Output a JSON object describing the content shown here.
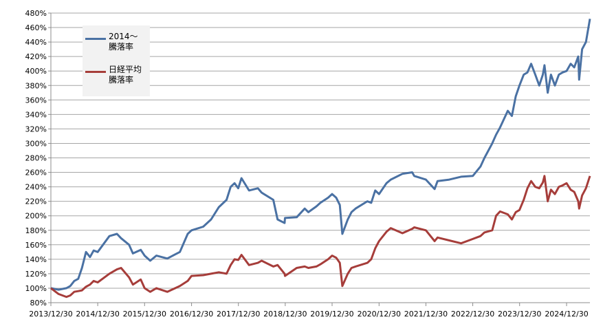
{
  "chart_data": {
    "type": "line",
    "title": "",
    "xlabel": "",
    "ylabel": "",
    "ylim": [
      80,
      480
    ],
    "y_ticks": [
      "80%",
      "100%",
      "120%",
      "140%",
      "160%",
      "180%",
      "200%",
      "220%",
      "240%",
      "260%",
      "280%",
      "300%",
      "320%",
      "340%",
      "360%",
      "380%",
      "400%",
      "420%",
      "440%",
      "460%",
      "480%"
    ],
    "x_ticks": [
      "2013/12/30",
      "2014/12/30",
      "2015/12/30",
      "2016/12/30",
      "2017/12/30",
      "2018/12/30",
      "2019/12/30",
      "2020/12/30",
      "2021/12/30",
      "2022/12/30",
      "2023/12/30",
      "2024/12/30"
    ],
    "x_start": "2013/12/30",
    "x_end": "2025/06/30",
    "grid": true,
    "legend_position": "top-left",
    "series": [
      {
        "name": "2014～\n騰落率",
        "color": "#4a71a3",
        "x": [
          "2013/12/30",
          "2014/02/28",
          "2014/04/30",
          "2014/05/30",
          "2014/06/30",
          "2014/07/31",
          "2014/08/29",
          "2014/09/30",
          "2014/10/31",
          "2014/11/28",
          "2014/12/30",
          "2015/03/31",
          "2015/05/29",
          "2015/06/30",
          "2015/08/31",
          "2015/09/30",
          "2015/11/30",
          "2015/12/30",
          "2016/02/12",
          "2016/03/31",
          "2016/06/24",
          "2016/09/30",
          "2016/11/30",
          "2016/12/30",
          "2017/03/31",
          "2017/05/31",
          "2017/07/31",
          "2017/09/29",
          "2017/10/31",
          "2017/11/30",
          "2017/12/29",
          "2018/01/23",
          "2018/03/23",
          "2018/05/31",
          "2018/06/29",
          "2018/09/28",
          "2018/10/31",
          "2018/12/25",
          "2018/12/28",
          "2019/03/29",
          "2019/05/31",
          "2019/06/28",
          "2019/08/30",
          "2019/09/30",
          "2019/11/29",
          "2019/12/30",
          "2020/01/31",
          "2020/02/28",
          "2020/03/19",
          "2020/04/30",
          "2020/05/29",
          "2020/06/30",
          "2020/09/30",
          "2020/10/30",
          "2020/11/30",
          "2020/12/30",
          "2021/02/26",
          "2021/03/31",
          "2021/06/30",
          "2021/09/14",
          "2021/09/30",
          "2021/12/30",
          "2022/03/08",
          "2022/03/31",
          "2022/06/30",
          "2022/09/30",
          "2022/12/30",
          "2023/02/28",
          "2023/03/31",
          "2023/05/31",
          "2023/06/30",
          "2023/07/31",
          "2023/09/29",
          "2023/10/31",
          "2023/11/30",
          "2023/12/29",
          "2024/01/31",
          "2024/02/29",
          "2024/03/29",
          "2024/04/30",
          "2024/05/31",
          "2024/06/28",
          "2024/07/11",
          "2024/08/05",
          "2024/08/30",
          "2024/09/30",
          "2024/10/31",
          "2024/11/29",
          "2024/12/30",
          "2025/01/31",
          "2025/02/28",
          "2025/03/31",
          "2025/04/07",
          "2025/04/30",
          "2025/05/30",
          "2025/06/30"
        ],
        "values": [
          100,
          98,
          100,
          103,
          110,
          113,
          128,
          150,
          143,
          152,
          150,
          172,
          175,
          169,
          160,
          148,
          153,
          145,
          138,
          145,
          141,
          150,
          175,
          180,
          185,
          195,
          212,
          222,
          240,
          245,
          238,
          252,
          235,
          238,
          232,
          222,
          195,
          190,
          197,
          198,
          210,
          205,
          213,
          218,
          225,
          230,
          225,
          215,
          175,
          195,
          205,
          210,
          220,
          218,
          235,
          230,
          245,
          250,
          258,
          260,
          255,
          250,
          237,
          248,
          250,
          254,
          255,
          268,
          280,
          300,
          312,
          322,
          345,
          338,
          365,
          380,
          395,
          398,
          410,
          395,
          380,
          395,
          408,
          370,
          395,
          380,
          395,
          398,
          400,
          410,
          405,
          420,
          388,
          430,
          440,
          472
        ]
      },
      {
        "name": "日経平均\n騰落率",
        "color": "#a63d3a",
        "x": [
          "2013/12/30",
          "2014/02/28",
          "2014/04/30",
          "2014/05/30",
          "2014/06/30",
          "2014/07/31",
          "2014/08/29",
          "2014/09/30",
          "2014/10/31",
          "2014/11/28",
          "2014/12/30",
          "2015/03/31",
          "2015/05/29",
          "2015/06/30",
          "2015/08/31",
          "2015/09/30",
          "2015/11/30",
          "2015/12/30",
          "2016/02/12",
          "2016/03/31",
          "2016/06/24",
          "2016/09/30",
          "2016/11/30",
          "2016/12/30",
          "2017/03/31",
          "2017/05/31",
          "2017/07/31",
          "2017/09/29",
          "2017/10/31",
          "2017/11/30",
          "2017/12/29",
          "2018/01/23",
          "2018/03/23",
          "2018/05/31",
          "2018/06/29",
          "2018/09/28",
          "2018/10/31",
          "2018/12/25",
          "2018/12/28",
          "2019/03/29",
          "2019/05/31",
          "2019/06/28",
          "2019/08/30",
          "2019/09/30",
          "2019/11/29",
          "2019/12/30",
          "2020/01/31",
          "2020/02/28",
          "2020/03/19",
          "2020/04/30",
          "2020/05/29",
          "2020/06/30",
          "2020/09/30",
          "2020/10/30",
          "2020/11/30",
          "2020/12/30",
          "2021/02/26",
          "2021/03/31",
          "2021/06/30",
          "2021/09/14",
          "2021/09/30",
          "2021/12/30",
          "2022/03/08",
          "2022/03/31",
          "2022/06/30",
          "2022/09/30",
          "2022/12/30",
          "2023/02/28",
          "2023/03/31",
          "2023/05/31",
          "2023/06/30",
          "2023/07/31",
          "2023/09/29",
          "2023/10/31",
          "2023/11/30",
          "2023/12/29",
          "2024/01/31",
          "2024/02/29",
          "2024/03/29",
          "2024/04/30",
          "2024/05/31",
          "2024/06/28",
          "2024/07/11",
          "2024/08/05",
          "2024/08/30",
          "2024/09/30",
          "2024/10/31",
          "2024/11/29",
          "2024/12/30",
          "2025/01/31",
          "2025/02/28",
          "2025/03/31",
          "2025/04/07",
          "2025/04/30",
          "2025/05/30",
          "2025/06/30"
        ],
        "values": [
          100,
          92,
          88,
          90,
          95,
          96,
          97,
          102,
          105,
          110,
          108,
          120,
          126,
          128,
          115,
          105,
          112,
          100,
          95,
          100,
          95,
          103,
          110,
          117,
          118,
          120,
          122,
          120,
          132,
          140,
          139,
          146,
          132,
          135,
          138,
          130,
          132,
          120,
          117,
          128,
          130,
          128,
          130,
          133,
          140,
          145,
          142,
          135,
          103,
          120,
          128,
          130,
          135,
          140,
          155,
          165,
          178,
          183,
          176,
          182,
          184,
          180,
          165,
          170,
          166,
          162,
          168,
          172,
          177,
          180,
          200,
          206,
          202,
          195,
          205,
          208,
          222,
          238,
          248,
          240,
          238,
          246,
          255,
          220,
          236,
          230,
          240,
          242,
          245,
          236,
          233,
          220,
          210,
          228,
          238,
          255
        ]
      }
    ]
  }
}
